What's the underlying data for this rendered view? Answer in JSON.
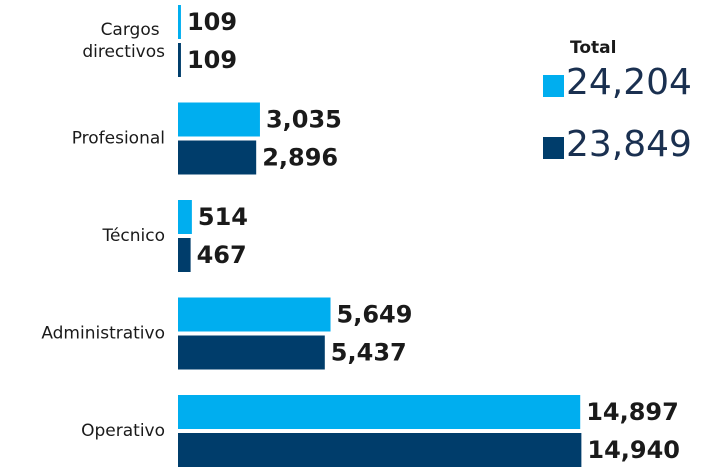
{
  "chart_data": {
    "type": "bar",
    "orientation": "horizontal",
    "categories": [
      "Cargos directivos",
      "Profesional",
      "Técnico",
      "Administrativo",
      "Operativo"
    ],
    "series": [
      {
        "color": "#00aeef",
        "values": [
          109,
          3035,
          514,
          5649,
          14897
        ],
        "value_labels": [
          "109",
          "3,035",
          "514",
          "5,649",
          "14,897"
        ]
      },
      {
        "color": "#003d6b",
        "values": [
          109,
          2896,
          467,
          5437,
          14940
        ],
        "value_labels": [
          "109",
          "2,896",
          "467",
          "5,437",
          "14,940"
        ]
      }
    ],
    "xlim": [
      0,
      15000
    ],
    "legend": {
      "title": "Total",
      "totals": [
        24204,
        23849
      ],
      "total_labels": [
        "24,204",
        "23,849"
      ]
    }
  }
}
